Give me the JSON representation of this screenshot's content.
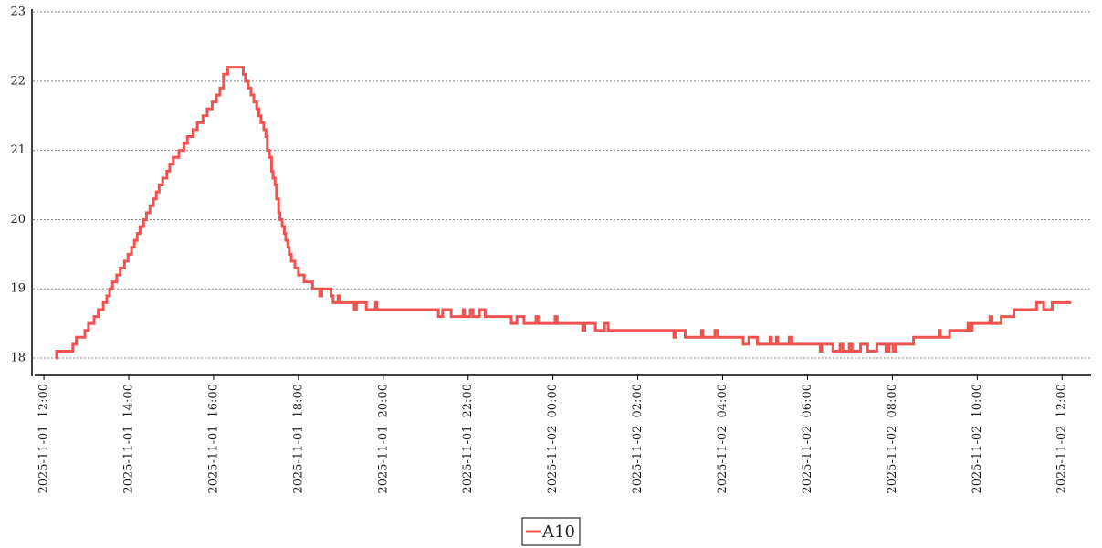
{
  "chart_data": {
    "type": "line",
    "step": true,
    "x": [
      "2025-11-01 12:17",
      "2025-11-01 12:18",
      "2025-11-01 12:41",
      "2025-11-01 12:46",
      "2025-11-01 12:58",
      "2025-11-01 13:03",
      "2025-11-01 13:11",
      "2025-11-01 13:17",
      "2025-11-01 13:24",
      "2025-11-01 13:29",
      "2025-11-01 13:33",
      "2025-11-01 13:37",
      "2025-11-01 13:43",
      "2025-11-01 13:48",
      "2025-11-01 13:54",
      "2025-11-01 13:59",
      "2025-11-01 14:04",
      "2025-11-01 14:08",
      "2025-11-01 14:12",
      "2025-11-01 14:16",
      "2025-11-01 14:21",
      "2025-11-01 14:25",
      "2025-11-01 14:30",
      "2025-11-01 14:35",
      "2025-11-01 14:39",
      "2025-11-01 14:43",
      "2025-11-01 14:48",
      "2025-11-01 14:54",
      "2025-11-01 14:58",
      "2025-11-01 15:03",
      "2025-11-01 15:11",
      "2025-11-01 15:18",
      "2025-11-01 15:23",
      "2025-11-01 15:31",
      "2025-11-01 15:37",
      "2025-11-01 15:45",
      "2025-11-01 15:51",
      "2025-11-01 15:58",
      "2025-11-01 16:04",
      "2025-11-01 16:09",
      "2025-11-01 16:14",
      "2025-11-01 16:20",
      "2025-11-01 16:42",
      "2025-11-01 16:45",
      "2025-11-01 16:49",
      "2025-11-01 16:53",
      "2025-11-01 16:57",
      "2025-11-01 17:01",
      "2025-11-01 17:04",
      "2025-11-01 17:07",
      "2025-11-01 17:11",
      "2025-11-01 17:14",
      "2025-11-01 17:16",
      "2025-11-01 17:19",
      "2025-11-01 17:22",
      "2025-11-01 17:24",
      "2025-11-01 17:27",
      "2025-11-01 17:29",
      "2025-11-01 17:32",
      "2025-11-01 17:34",
      "2025-11-01 17:37",
      "2025-11-01 17:40",
      "2025-11-01 17:42",
      "2025-11-01 17:45",
      "2025-11-01 17:47",
      "2025-11-01 17:50",
      "2025-11-01 17:55",
      "2025-11-01 18:00",
      "2025-11-01 18:08",
      "2025-11-01 18:20",
      "2025-11-01 18:30",
      "2025-11-01 18:33",
      "2025-11-01 18:46",
      "2025-11-01 18:49",
      "2025-11-01 18:56",
      "2025-11-01 18:58",
      "2025-11-01 19:19",
      "2025-11-01 19:22",
      "2025-11-01 19:36",
      "2025-11-01 19:49",
      "2025-11-01 19:51",
      "2025-11-01 21:18",
      "2025-11-01 21:24",
      "2025-11-01 21:36",
      "2025-11-01 21:53",
      "2025-11-01 21:55",
      "2025-11-01 22:03",
      "2025-11-01 22:07",
      "2025-11-01 22:16",
      "2025-11-01 22:24",
      "2025-11-01 23:01",
      "2025-11-01 23:09",
      "2025-11-01 23:19",
      "2025-11-01 23:36",
      "2025-11-01 23:39",
      "2025-11-02 00:03",
      "2025-11-02 00:06",
      "2025-11-02 00:42",
      "2025-11-02 00:45",
      "2025-11-02 01:00",
      "2025-11-02 01:13",
      "2025-11-02 01:18",
      "2025-11-02 02:51",
      "2025-11-02 02:54",
      "2025-11-02 03:07",
      "2025-11-02 03:30",
      "2025-11-02 03:32",
      "2025-11-02 03:49",
      "2025-11-02 03:53",
      "2025-11-02 04:29",
      "2025-11-02 04:37",
      "2025-11-02 04:49",
      "2025-11-02 05:07",
      "2025-11-02 05:09",
      "2025-11-02 05:16",
      "2025-11-02 05:18",
      "2025-11-02 05:34",
      "2025-11-02 05:38",
      "2025-11-02 06:18",
      "2025-11-02 06:20",
      "2025-11-02 06:36",
      "2025-11-02 06:46",
      "2025-11-02 06:50",
      "2025-11-02 06:59",
      "2025-11-02 07:03",
      "2025-11-02 07:15",
      "2025-11-02 07:25",
      "2025-11-02 07:38",
      "2025-11-02 07:51",
      "2025-11-02 07:55",
      "2025-11-02 08:01",
      "2025-11-02 08:05",
      "2025-11-02 08:30",
      "2025-11-02 09:06",
      "2025-11-02 09:08",
      "2025-11-02 09:21",
      "2025-11-02 09:47",
      "2025-11-02 09:50",
      "2025-11-02 09:53",
      "2025-11-02 10:18",
      "2025-11-02 10:21",
      "2025-11-02 10:34",
      "2025-11-02 10:52",
      "2025-11-02 11:24",
      "2025-11-02 11:34",
      "2025-11-02 11:46",
      "2025-11-02 12:13"
    ],
    "series": [
      {
        "name": "A10",
        "color": "#ef5350",
        "values": [
          18.0,
          18.1,
          18.2,
          18.3,
          18.4,
          18.5,
          18.6,
          18.7,
          18.8,
          18.9,
          19.0,
          19.1,
          19.2,
          19.3,
          19.4,
          19.5,
          19.6,
          19.7,
          19.8,
          19.9,
          20.0,
          20.1,
          20.2,
          20.3,
          20.4,
          20.5,
          20.6,
          20.7,
          20.8,
          20.9,
          21.0,
          21.1,
          21.2,
          21.3,
          21.4,
          21.5,
          21.6,
          21.7,
          21.8,
          21.9,
          22.1,
          22.2,
          22.1,
          22.0,
          21.9,
          21.8,
          21.7,
          21.6,
          21.5,
          21.4,
          21.3,
          21.2,
          21.0,
          20.9,
          20.7,
          20.6,
          20.5,
          20.3,
          20.1,
          20.0,
          19.9,
          19.8,
          19.7,
          19.6,
          19.5,
          19.4,
          19.3,
          19.2,
          19.1,
          19.0,
          18.9,
          19.0,
          18.9,
          18.8,
          18.9,
          18.8,
          18.7,
          18.8,
          18.7,
          18.8,
          18.7,
          18.6,
          18.7,
          18.6,
          18.7,
          18.6,
          18.7,
          18.6,
          18.7,
          18.6,
          18.5,
          18.6,
          18.5,
          18.6,
          18.5,
          18.6,
          18.5,
          18.4,
          18.5,
          18.4,
          18.5,
          18.4,
          18.3,
          18.4,
          18.3,
          18.4,
          18.3,
          18.4,
          18.3,
          18.2,
          18.3,
          18.2,
          18.3,
          18.2,
          18.3,
          18.2,
          18.3,
          18.2,
          18.1,
          18.2,
          18.1,
          18.2,
          18.1,
          18.2,
          18.1,
          18.2,
          18.1,
          18.2,
          18.1,
          18.2,
          18.1,
          18.2,
          18.3,
          18.4,
          18.3,
          18.4,
          18.5,
          18.4,
          18.5,
          18.6,
          18.5,
          18.6,
          18.7,
          18.8,
          18.7,
          18.8,
          18.8
        ]
      }
    ],
    "xlim": [
      "2025-11-01 11:47",
      "2025-11-02 12:41"
    ],
    "xticks": [
      "2025-11-01 12:00",
      "2025-11-01 14:00",
      "2025-11-01 16:00",
      "2025-11-01 18:00",
      "2025-11-01 20:00",
      "2025-11-01 22:00",
      "2025-11-02 00:00",
      "2025-11-02 02:00",
      "2025-11-02 04:00",
      "2025-11-02 06:00",
      "2025-11-02 08:00",
      "2025-11-02 10:00",
      "2025-11-02 12:00"
    ],
    "ylim": [
      17.75,
      23.04
    ],
    "yticks": [
      18,
      19,
      20,
      21,
      22,
      23
    ],
    "grid": true,
    "legend": "bottom"
  }
}
